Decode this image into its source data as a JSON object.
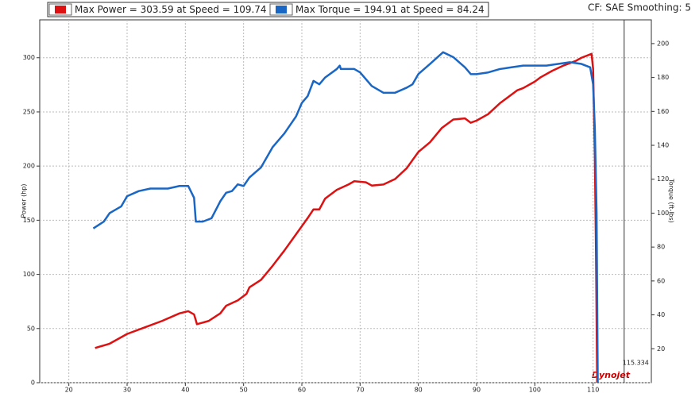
{
  "chart_data": {
    "type": "line",
    "y_label": "Power (hp)",
    "y2_label": "Torque (ft-lbs)",
    "note": "CF: SAE Smoothing: 5",
    "logo": "Dynojet",
    "cursor_x": 115.334,
    "xlim": [
      15,
      120
    ],
    "xticks": [
      20,
      30,
      40,
      50,
      60,
      70,
      80,
      90,
      100,
      110
    ],
    "ylim": [
      0,
      335
    ],
    "yticks": [
      0,
      50,
      100,
      150,
      200,
      250,
      300
    ],
    "y2lim": [
      0,
      214
    ],
    "y2ticks": [
      20,
      40,
      60,
      80,
      100,
      120,
      140,
      160,
      180,
      200
    ],
    "grid": true,
    "series": [
      {
        "name": "Max Power = 303.59 at Speed = 109.74",
        "color": "#dd1111",
        "x": [
          24.5,
          27,
          30,
          33,
          36,
          39,
          40.5,
          41.5,
          42,
          44,
          46,
          47,
          49,
          50.5,
          51,
          53,
          55,
          57,
          59,
          61,
          62,
          63,
          64,
          66,
          68,
          69,
          71,
          72,
          74,
          76,
          78,
          80,
          82,
          84,
          86,
          88,
          89,
          90,
          92,
          94,
          96,
          97,
          98,
          100,
          101,
          103,
          105,
          107,
          108,
          109.74,
          110,
          110.3,
          110.5,
          110.7
        ],
        "values": [
          32,
          36,
          45,
          51,
          57,
          64,
          66,
          63,
          54,
          57,
          64,
          71,
          76,
          82,
          88,
          95,
          108,
          122,
          137,
          152,
          160,
          160,
          170,
          178,
          183,
          186,
          185,
          182,
          183,
          188,
          198,
          213,
          222,
          235,
          243,
          244,
          240,
          242,
          248,
          258,
          266,
          270,
          272,
          278,
          282,
          288,
          293,
          297,
          300,
          303.59,
          290,
          210,
          120,
          0
        ]
      },
      {
        "name": "Max Torque = 194.91 at Speed = 84.24",
        "color": "#1a66c4",
        "axis": "y2",
        "x": [
          24.2,
          26,
          27,
          29,
          30,
          32,
          34,
          37,
          39,
          40.5,
          41.5,
          41.8,
          43,
          44.5,
          46,
          47,
          48,
          49,
          50,
          51,
          53,
          55,
          57,
          59,
          60,
          61,
          62,
          63,
          64,
          66,
          66.5,
          66.7,
          69,
          70,
          72,
          74,
          76,
          78,
          79,
          80,
          82,
          84.24,
          86,
          88,
          89,
          90,
          92,
          94,
          96,
          98,
          100,
          102,
          104,
          106,
          108,
          109.5,
          110,
          110.3,
          110.6,
          110.8
        ],
        "values": [
          91,
          95,
          100,
          104,
          110,
          113,
          114.5,
          114.5,
          116,
          116,
          109,
          95,
          95,
          97,
          107,
          112,
          113,
          117,
          116,
          121,
          127,
          139,
          147,
          157,
          165,
          169,
          178,
          176,
          180,
          185,
          187,
          185,
          185,
          183,
          175,
          171,
          171,
          174,
          176,
          182,
          188,
          194.91,
          192,
          186,
          182,
          182,
          183,
          185,
          186,
          187,
          187,
          187,
          188,
          189,
          188,
          186,
          176,
          150,
          100,
          0
        ]
      }
    ]
  }
}
